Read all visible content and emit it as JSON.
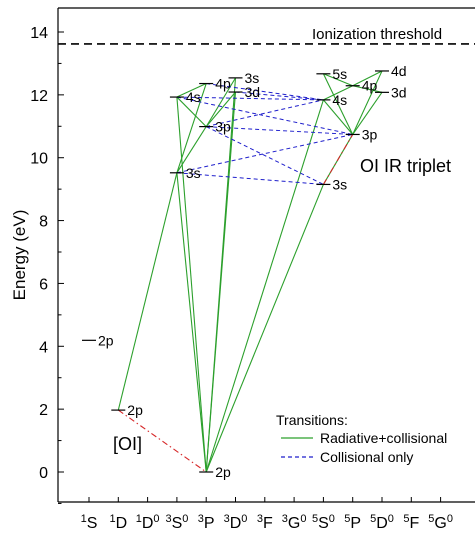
{
  "chart_data": {
    "type": "energy-level-diagram",
    "title": "",
    "ylabel": "Energy (eV)",
    "xlabel": "",
    "ylim": [
      -1,
      14.8
    ],
    "yticks": [
      0,
      2,
      4,
      6,
      8,
      10,
      12,
      14
    ],
    "grid": false,
    "x_categories": [
      {
        "id": "1S",
        "mult": "1",
        "sym": "S",
        "par": ""
      },
      {
        "id": "1D",
        "mult": "1",
        "sym": "D",
        "par": ""
      },
      {
        "id": "1D0",
        "mult": "1",
        "sym": "D",
        "par": "0"
      },
      {
        "id": "3S0",
        "mult": "3",
        "sym": "S",
        "par": "0"
      },
      {
        "id": "3P",
        "mult": "3",
        "sym": "P",
        "par": ""
      },
      {
        "id": "3D0",
        "mult": "3",
        "sym": "D",
        "par": "0"
      },
      {
        "id": "3F",
        "mult": "3",
        "sym": "F",
        "par": ""
      },
      {
        "id": "3G0",
        "mult": "3",
        "sym": "G",
        "par": "0"
      },
      {
        "id": "5S0",
        "mult": "5",
        "sym": "S",
        "par": "0"
      },
      {
        "id": "5P",
        "mult": "5",
        "sym": "P",
        "par": ""
      },
      {
        "id": "5D0",
        "mult": "5",
        "sym": "D",
        "par": "0"
      },
      {
        "id": "5F",
        "mult": "5",
        "sym": "F",
        "par": ""
      },
      {
        "id": "5G0",
        "mult": "5",
        "sym": "G",
        "par": "0"
      }
    ],
    "levels": [
      {
        "key": "2p_1S",
        "term": 0,
        "energy": 4.19,
        "label": "2p"
      },
      {
        "key": "2p_1D",
        "term": 1,
        "energy": 1.97,
        "label": "2p"
      },
      {
        "key": "2p_3P",
        "term": 4,
        "energy": 0.0,
        "label": "2p"
      },
      {
        "key": "3s_3S0",
        "term": 3,
        "energy": 9.52,
        "label": "3s"
      },
      {
        "key": "4s_3S0",
        "term": 3,
        "energy": 11.93,
        "label": "4s"
      },
      {
        "key": "3p_3P",
        "term": 4,
        "energy": 10.99,
        "label": "3p"
      },
      {
        "key": "4p_3P",
        "term": 4,
        "energy": 12.36,
        "label": "4p"
      },
      {
        "key": "3d_3D0",
        "term": 5,
        "energy": 12.09,
        "label": "3d"
      },
      {
        "key": "3s_3D0",
        "term": 5,
        "energy": 12.54,
        "label": "3s"
      },
      {
        "key": "3s_5S0",
        "term": 8,
        "energy": 9.15,
        "label": "3s"
      },
      {
        "key": "4s_5S0",
        "term": 8,
        "energy": 11.84,
        "label": "4s"
      },
      {
        "key": "5s_5S0",
        "term": 8,
        "energy": 12.67,
        "label": "5s"
      },
      {
        "key": "3p_5P",
        "term": 9,
        "energy": 10.74,
        "label": "3p"
      },
      {
        "key": "4p_5P",
        "term": 9,
        "energy": 12.29,
        "label": "4p"
      },
      {
        "key": "3d_5D0",
        "term": 10,
        "energy": 12.08,
        "label": "3d"
      },
      {
        "key": "4d_5D0",
        "term": 10,
        "energy": 12.76,
        "label": "4d"
      }
    ],
    "ionization": {
      "energy": 13.62,
      "label": "Ionization threshold"
    },
    "annotations": {
      "oi": "[OI]",
      "triplet": "OI IR triplet"
    },
    "transitions": {
      "radiative_collisional": [
        [
          "2p_1D",
          "3s_3S0"
        ],
        [
          "2p_3P",
          "3s_3S0"
        ],
        [
          "2p_3P",
          "4s_3S0"
        ],
        [
          "2p_3P",
          "3d_3D0"
        ],
        [
          "2p_3P",
          "3s_3D0"
        ],
        [
          "2p_3P",
          "3s_5S0"
        ],
        [
          "2p_3P",
          "4s_5S0"
        ],
        [
          "3s_3S0",
          "3p_3P"
        ],
        [
          "3s_3S0",
          "4p_3P"
        ],
        [
          "4s_3S0",
          "3p_3P"
        ],
        [
          "4s_3S0",
          "4p_3P"
        ],
        [
          "3p_3P",
          "3d_3D0"
        ],
        [
          "3p_3P",
          "3s_3D0"
        ],
        [
          "3s_5S0",
          "3p_5P"
        ],
        [
          "4s_5S0",
          "3p_5P"
        ],
        [
          "4s_5S0",
          "4p_5P"
        ],
        [
          "5s_5S0",
          "3p_5P"
        ],
        [
          "5s_5S0",
          "4p_5P"
        ],
        [
          "3p_5P",
          "3d_5D0"
        ],
        [
          "3p_5P",
          "4d_5D0"
        ],
        [
          "4p_5P",
          "4d_5D0"
        ],
        [
          "4p_5P",
          "3d_5D0"
        ]
      ],
      "collisional_only": [
        [
          "3s_3S0",
          "3s_5S0"
        ],
        [
          "3s_3S0",
          "3p_5P"
        ],
        [
          "3p_3P",
          "3s_5S0"
        ],
        [
          "3p_3P",
          "3p_5P"
        ],
        [
          "4s_3S0",
          "4s_5S0"
        ],
        [
          "4s_3S0",
          "3p_5P"
        ],
        [
          "4p_3P",
          "4s_5S0"
        ],
        [
          "3d_3D0",
          "4s_5S0"
        ],
        [
          "3p_3P",
          "4s_5S0"
        ]
      ],
      "forbidden": [
        [
          "2p_1D",
          "2p_3P"
        ],
        [
          "3s_5S0",
          "3p_5P"
        ]
      ]
    },
    "legend": {
      "title": "Transitions:",
      "position": "bottom-right",
      "entries": [
        {
          "label": "Radiative+collisional",
          "color": "#2ca02c",
          "style": "solid"
        },
        {
          "label": "Collisional only",
          "color": "#1f1fcc",
          "style": "dashed"
        }
      ]
    },
    "colors": {
      "radiative": "#2ca02c",
      "collisional": "#1f1fcc",
      "forbidden": "#d62728",
      "threshold": "#000000"
    }
  }
}
